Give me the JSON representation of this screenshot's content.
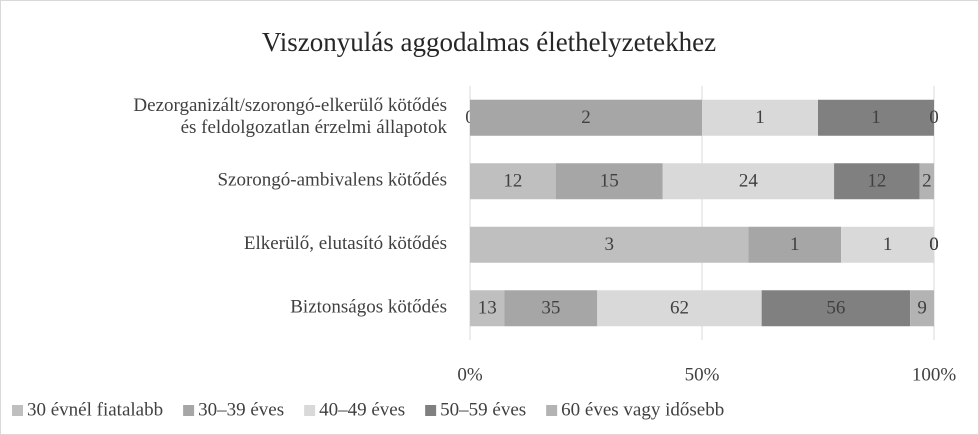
{
  "chart_data": {
    "type": "bar",
    "orientation": "horizontal",
    "stacked": "percent",
    "title": "Viszonyulás aggodalmas élethelyzetekhez",
    "categories": [
      "Dezorganizált/szorongó-elkerülő kötődés\nés feldolgozatlan érzelmi állapotok",
      "Szorongó-ambivalens kötődés",
      "Elkerülő, elutasító kötődés",
      "Biztonságos kötődés"
    ],
    "series": [
      {
        "name": "30 évnél fiatalabb",
        "color": "#bfbfbf",
        "values": [
          0,
          12,
          3,
          13
        ]
      },
      {
        "name": "30–39 éves",
        "color": "#a6a6a6",
        "values": [
          2,
          15,
          1,
          35
        ]
      },
      {
        "name": "40–49 éves",
        "color": "#d9d9d9",
        "values": [
          1,
          24,
          1,
          62
        ]
      },
      {
        "name": "50–59 éves",
        "color": "#808080",
        "values": [
          1,
          12,
          0,
          56
        ]
      },
      {
        "name": "60 éves vagy idősebb",
        "color": "#b3b3b3",
        "values": [
          0,
          2,
          0,
          9
        ]
      }
    ],
    "xlim": [
      0,
      100
    ],
    "xticks": [
      {
        "value": 0,
        "label": "0%"
      },
      {
        "value": 50,
        "label": "50%"
      },
      {
        "value": 100,
        "label": "100%"
      }
    ],
    "grid": true,
    "legend": "bottom"
  }
}
